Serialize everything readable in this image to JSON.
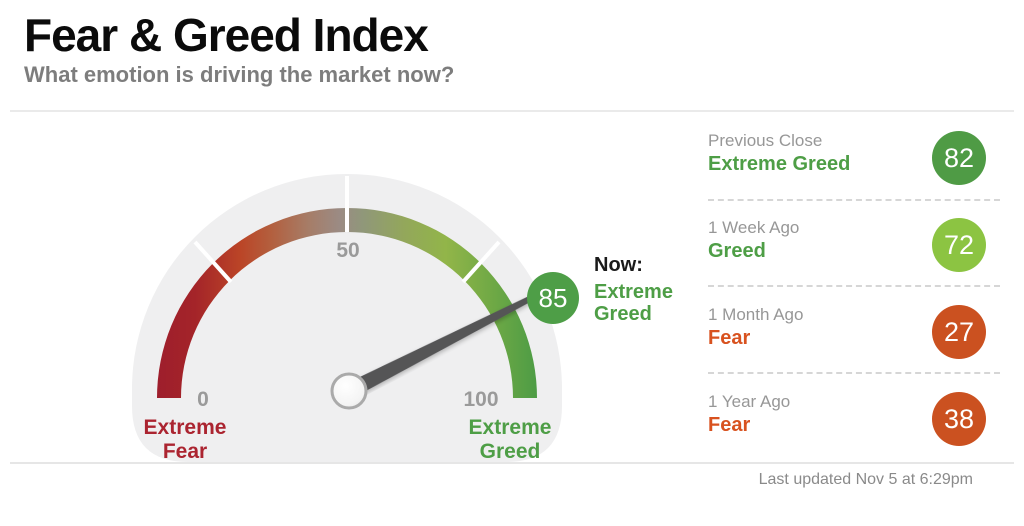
{
  "header": {
    "title": "Fear & Greed Index",
    "subtitle": "What emotion is driving the market now?"
  },
  "gauge": {
    "ticks": {
      "min": "0",
      "mid": "50",
      "max": "100"
    },
    "left_caption": {
      "line1": "Extreme",
      "line2": "Fear"
    },
    "right_caption": {
      "line1": "Extreme",
      "line2": "Greed"
    },
    "now_label": "Now:",
    "now_sentiment": {
      "line1": "Extreme",
      "line2": "Greed"
    },
    "now_value": "85",
    "colors": {
      "now_badge": "#4e9e47",
      "fear_text": "#ab2430",
      "greed_text": "#4e9e46",
      "tick_text": "#9a9a9a",
      "needle": "#545456"
    }
  },
  "history": {
    "rows": [
      {
        "label": "Previous Close",
        "sentiment": "Extreme Greed",
        "value": "82",
        "badge_color": "#4f9b45",
        "sentiment_color": "#4e9e46"
      },
      {
        "label": "1 Week Ago",
        "sentiment": "Greed",
        "value": "72",
        "badge_color": "#8cc442",
        "sentiment_color": "#4e9e46"
      },
      {
        "label": "1 Month Ago",
        "sentiment": "Fear",
        "value": "27",
        "badge_color": "#cb5120",
        "sentiment_color": "#d8521f"
      },
      {
        "label": "1 Year Ago",
        "sentiment": "Fear",
        "value": "38",
        "badge_color": "#cb5120",
        "sentiment_color": "#d8521f"
      }
    ]
  },
  "footer": {
    "last_updated": "Last updated Nov 5 at 6:29pm"
  },
  "chart_data": {
    "type": "gauge",
    "title": "Fear & Greed Index",
    "subtitle": "What emotion is driving the market now?",
    "value": 85,
    "min": 0,
    "max": 100,
    "sentiment": "Extreme Greed",
    "scale_ticks": [
      0,
      50,
      100
    ],
    "scale_left_label": "Extreme Fear",
    "scale_right_label": "Extreme Greed",
    "arc_gradient": [
      "#9e1e2c",
      "#bb4527",
      "#9b8b84",
      "#92b549",
      "#4d9c45"
    ],
    "history": [
      {
        "period": "Previous Close",
        "sentiment": "Extreme Greed",
        "value": 82
      },
      {
        "period": "1 Week Ago",
        "sentiment": "Greed",
        "value": 72
      },
      {
        "period": "1 Month Ago",
        "sentiment": "Fear",
        "value": 27
      },
      {
        "period": "1 Year Ago",
        "sentiment": "Fear",
        "value": 38
      }
    ]
  }
}
